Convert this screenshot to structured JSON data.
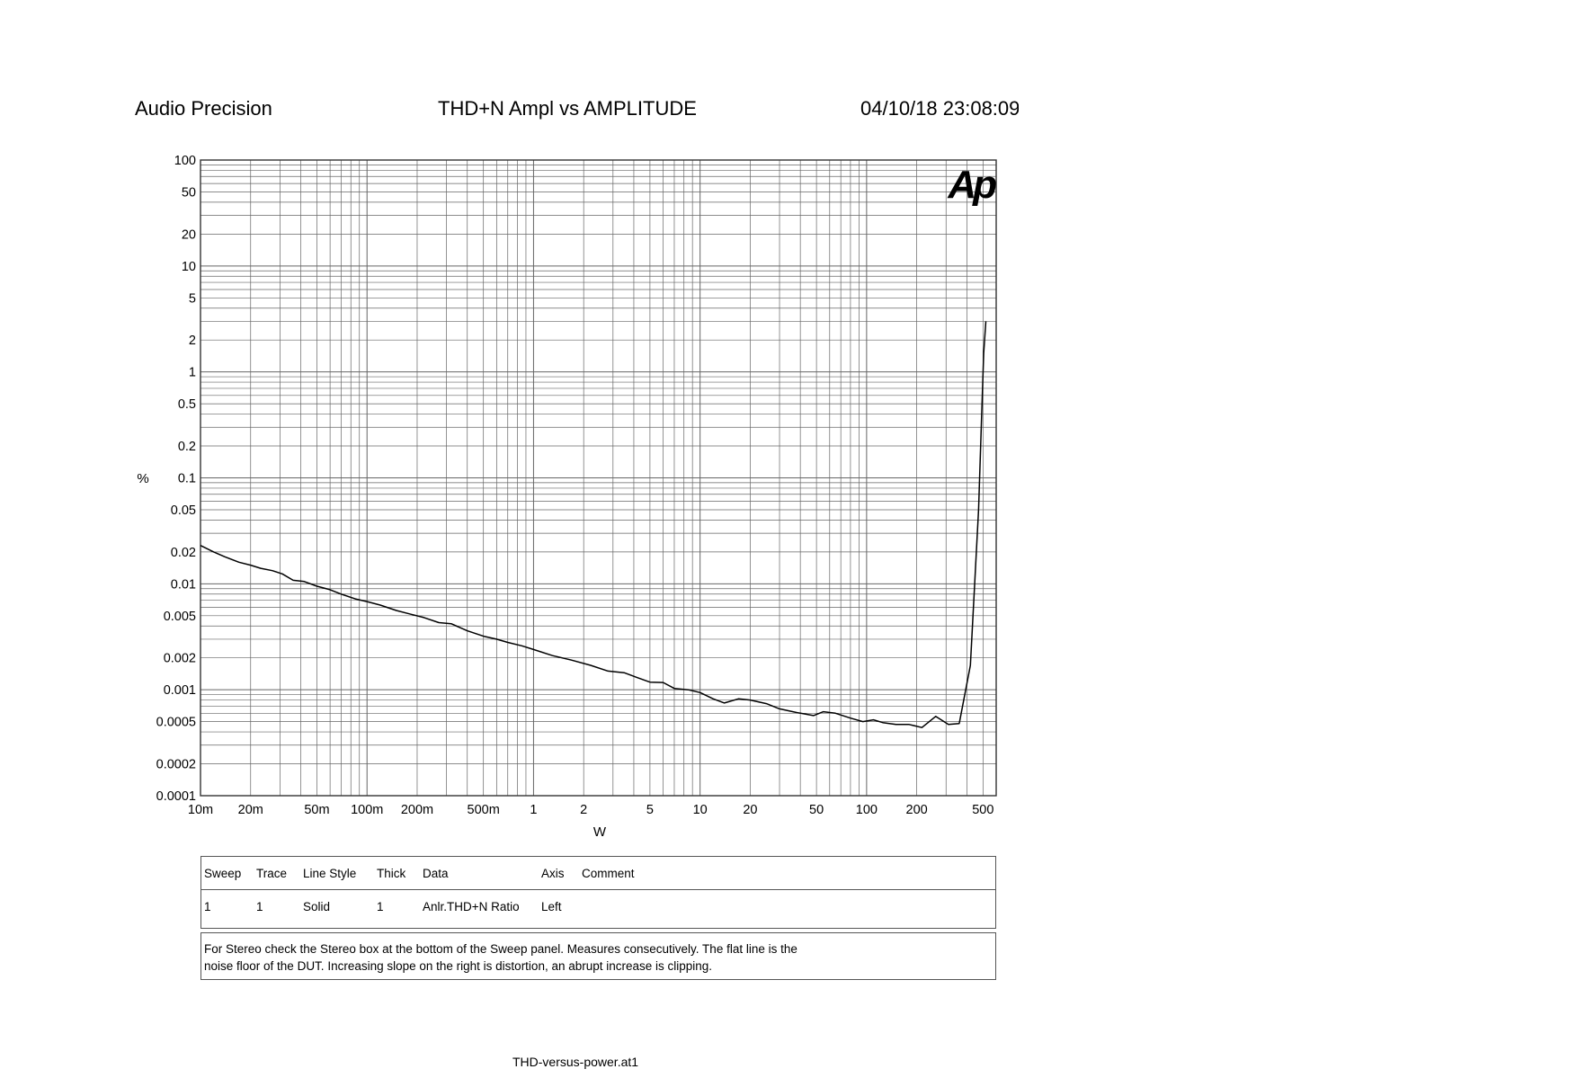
{
  "header": {
    "left": "Audio Precision",
    "title": "THD+N Ampl vs AMPLITUDE",
    "datetime": "04/10/18 23:08:09"
  },
  "chart_data": {
    "type": "line",
    "title": "THD+N Ampl vs AMPLITUDE",
    "xlabel": "W",
    "ylabel": "%",
    "x_scale": "log",
    "y_scale": "log",
    "xlim": [
      0.01,
      600
    ],
    "ylim": [
      0.0001,
      100
    ],
    "grid": true,
    "logo": "Ap",
    "x_ticks": [
      {
        "v": 0.01,
        "label": "10m"
      },
      {
        "v": 0.02,
        "label": "20m"
      },
      {
        "v": 0.05,
        "label": "50m"
      },
      {
        "v": 0.1,
        "label": "100m"
      },
      {
        "v": 0.2,
        "label": "200m"
      },
      {
        "v": 0.5,
        "label": "500m"
      },
      {
        "v": 1,
        "label": "1"
      },
      {
        "v": 2,
        "label": "2"
      },
      {
        "v": 5,
        "label": "5"
      },
      {
        "v": 10,
        "label": "10"
      },
      {
        "v": 20,
        "label": "20"
      },
      {
        "v": 50,
        "label": "50"
      },
      {
        "v": 100,
        "label": "100"
      },
      {
        "v": 200,
        "label": "200"
      },
      {
        "v": 500,
        "label": "500"
      }
    ],
    "y_ticks": [
      {
        "v": 100,
        "label": "100"
      },
      {
        "v": 50,
        "label": "50"
      },
      {
        "v": 20,
        "label": "20"
      },
      {
        "v": 10,
        "label": "10"
      },
      {
        "v": 5,
        "label": "5"
      },
      {
        "v": 2,
        "label": "2"
      },
      {
        "v": 1,
        "label": "1"
      },
      {
        "v": 0.5,
        "label": "0.5"
      },
      {
        "v": 0.2,
        "label": "0.2"
      },
      {
        "v": 0.1,
        "label": "0.1"
      },
      {
        "v": 0.05,
        "label": "0.05"
      },
      {
        "v": 0.02,
        "label": "0.02"
      },
      {
        "v": 0.01,
        "label": "0.01"
      },
      {
        "v": 0.005,
        "label": "0.005"
      },
      {
        "v": 0.002,
        "label": "0.002"
      },
      {
        "v": 0.001,
        "label": "0.001"
      },
      {
        "v": 0.0005,
        "label": "0.0005"
      },
      {
        "v": 0.0002,
        "label": "0.0002"
      },
      {
        "v": 0.0001,
        "label": "0.0001"
      }
    ],
    "series": [
      {
        "color": "#000000",
        "points": [
          [
            0.01,
            0.023
          ],
          [
            0.012,
            0.02
          ],
          [
            0.014,
            0.018
          ],
          [
            0.017,
            0.016
          ],
          [
            0.02,
            0.015
          ],
          [
            0.023,
            0.014
          ],
          [
            0.027,
            0.0133
          ],
          [
            0.031,
            0.0124
          ],
          [
            0.036,
            0.0108
          ],
          [
            0.042,
            0.0105
          ],
          [
            0.05,
            0.0095
          ],
          [
            0.06,
            0.0088
          ],
          [
            0.07,
            0.008
          ],
          [
            0.085,
            0.0072
          ],
          [
            0.1,
            0.0068
          ],
          [
            0.12,
            0.0063
          ],
          [
            0.15,
            0.0056
          ],
          [
            0.18,
            0.0052
          ],
          [
            0.22,
            0.0048
          ],
          [
            0.27,
            0.0043
          ],
          [
            0.32,
            0.0042
          ],
          [
            0.4,
            0.0036
          ],
          [
            0.5,
            0.0032
          ],
          [
            0.6,
            0.003
          ],
          [
            0.7,
            0.0028
          ],
          [
            0.85,
            0.0026
          ],
          [
            1,
            0.0024
          ],
          [
            1.3,
            0.0021
          ],
          [
            1.7,
            0.0019
          ],
          [
            2.2,
            0.0017
          ],
          [
            2.8,
            0.0015
          ],
          [
            3.5,
            0.00145
          ],
          [
            4.2,
            0.0013
          ],
          [
            5,
            0.00118
          ],
          [
            6,
            0.00117
          ],
          [
            7,
            0.00103
          ],
          [
            8.5,
            0.001
          ],
          [
            10,
            0.00094
          ],
          [
            12,
            0.00082
          ],
          [
            14,
            0.00075
          ],
          [
            17,
            0.00082
          ],
          [
            20,
            0.0008
          ],
          [
            25,
            0.00074
          ],
          [
            30,
            0.00066
          ],
          [
            38,
            0.00061
          ],
          [
            48,
            0.00057
          ],
          [
            55,
            0.00062
          ],
          [
            65,
            0.0006
          ],
          [
            80,
            0.00054
          ],
          [
            95,
            0.0005
          ],
          [
            110,
            0.00052
          ],
          [
            125,
            0.00049
          ],
          [
            150,
            0.00047
          ],
          [
            180,
            0.00047
          ],
          [
            215,
            0.00044
          ],
          [
            260,
            0.00056
          ],
          [
            310,
            0.00047
          ],
          [
            360,
            0.00048
          ],
          [
            420,
            0.0017
          ],
          [
            470,
            0.05
          ],
          [
            505,
            1.5
          ],
          [
            520,
            3.0
          ]
        ]
      }
    ]
  },
  "legend": {
    "headers": [
      "Sweep",
      "Trace",
      "Line Style",
      "Thick",
      "Data",
      "Axis",
      "Comment"
    ],
    "rows": [
      [
        "1",
        "1",
        "Solid",
        "1",
        "Anlr.THD+N Ratio",
        "Left",
        ""
      ]
    ]
  },
  "comment": {
    "line1": "For Stereo check the Stereo box at the bottom of the Sweep panel.  Measures consecutively.  The flat line is the",
    "line2": "noise floor of the DUT.  Increasing slope on the right is distortion, an abrupt increase is clipping."
  },
  "footer": "THD-versus-power.at1"
}
